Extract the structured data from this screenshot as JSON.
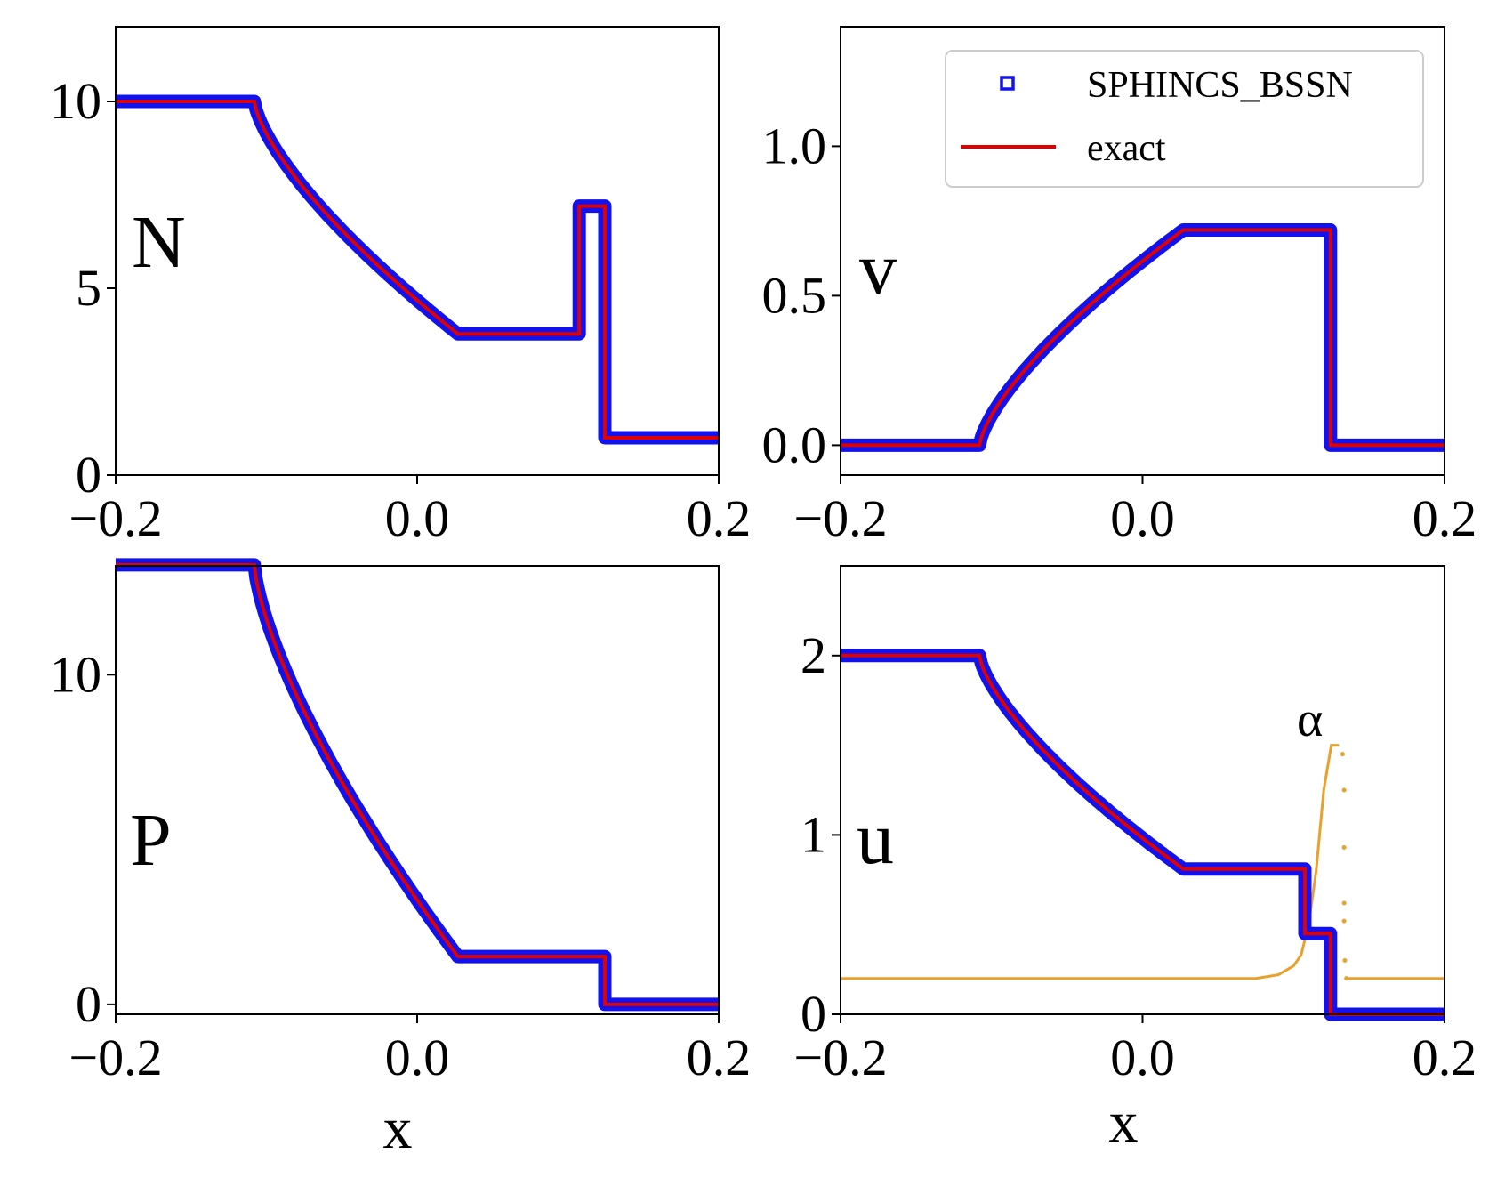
{
  "legend": {
    "sim_label": "SPHINCS_BSSN",
    "exact_label": "exact"
  },
  "colors": {
    "sim": "#1212ee",
    "exact": "#e00000",
    "alpha": "#e8a22c",
    "axis": "#000000"
  },
  "chart_data": [
    {
      "id": "N",
      "type": "line",
      "panel_label": "N",
      "xlabel": "",
      "xlim": [
        -0.2,
        0.2
      ],
      "ylim": [
        0,
        12
      ],
      "xticks": [
        -0.2,
        0.0,
        0.2
      ],
      "xtick_labels": [
        "−0.2",
        "0.0",
        "0.2"
      ],
      "yticks": [
        0,
        5,
        10
      ],
      "ytick_labels": [
        "0",
        "5",
        "10"
      ],
      "rarefaction": {
        "x_head": -0.108,
        "x_tail": 0.027,
        "y_left": 10.0,
        "y_right": 3.78,
        "exponent": 0.7
      },
      "exact_x": [
        -0.2,
        -0.108,
        0.027,
        0.1075,
        0.1075,
        0.1245,
        0.1245,
        0.2
      ],
      "exact_y": [
        10.0,
        10.0,
        3.78,
        3.78,
        7.2,
        7.2,
        1.0,
        1.0
      ]
    },
    {
      "id": "v",
      "type": "line",
      "panel_label": "v",
      "xlabel": "",
      "xlim": [
        -0.2,
        0.2
      ],
      "ylim": [
        -0.1,
        1.4
      ],
      "xticks": [
        -0.2,
        0.0,
        0.2
      ],
      "xtick_labels": [
        "−0.2",
        "0.0",
        "0.2"
      ],
      "yticks": [
        0.0,
        0.5,
        1.0
      ],
      "ytick_labels": [
        "0.0",
        "0.5",
        "1.0"
      ],
      "rarefaction": {
        "x_head": -0.108,
        "x_tail": 0.027,
        "y_left": 0.0,
        "y_right": 0.72,
        "exponent": 0.7
      },
      "exact_x": [
        -0.2,
        -0.108,
        0.027,
        0.1245,
        0.1245,
        0.2
      ],
      "exact_y": [
        0.0,
        0.0,
        0.72,
        0.72,
        0.0,
        0.0
      ]
    },
    {
      "id": "P",
      "type": "line",
      "panel_label": "P",
      "xlabel": "x",
      "xlim": [
        -0.2,
        0.2
      ],
      "ylim": [
        -0.3,
        13.3
      ],
      "xticks": [
        -0.2,
        0.0,
        0.2
      ],
      "xtick_labels": [
        "−0.2",
        "0.0",
        "0.2"
      ],
      "yticks": [
        0,
        10
      ],
      "ytick_labels": [
        "0",
        "10"
      ],
      "rarefaction": {
        "x_head": -0.108,
        "x_tail": 0.027,
        "y_left": 13.33,
        "y_right": 1.45,
        "exponent": 0.7
      },
      "exact_x": [
        -0.2,
        -0.108,
        0.027,
        0.1245,
        0.1245,
        0.2
      ],
      "exact_y": [
        13.33,
        13.33,
        1.45,
        1.45,
        0.0,
        0.0
      ]
    },
    {
      "id": "u",
      "type": "line",
      "panel_label": "u",
      "annotation": "α",
      "xlabel": "x",
      "xlim": [
        -0.2,
        0.2
      ],
      "ylim": [
        0,
        2.5
      ],
      "xticks": [
        -0.2,
        0.0,
        0.2
      ],
      "xtick_labels": [
        "−0.2",
        "0.0",
        "0.2"
      ],
      "yticks": [
        0,
        1,
        2
      ],
      "ytick_labels": [
        "0",
        "1",
        "2"
      ],
      "rarefaction": {
        "x_head": -0.108,
        "x_tail": 0.027,
        "y_left": 2.0,
        "y_right": 0.81,
        "exponent": 0.7
      },
      "exact_x": [
        -0.2,
        -0.108,
        0.027,
        0.1075,
        0.1075,
        0.1245,
        0.1245,
        0.2
      ],
      "exact_y": [
        2.0,
        2.0,
        0.81,
        0.81,
        0.45,
        0.45,
        0.0,
        0.0
      ],
      "alpha_x": [
        -0.2,
        0.075,
        0.09,
        0.1,
        0.105,
        0.11,
        0.115,
        0.12,
        0.125,
        0.13
      ],
      "alpha_y": [
        0.2,
        0.2,
        0.22,
        0.27,
        0.33,
        0.5,
        0.8,
        1.25,
        1.5,
        1.5
      ],
      "alpha_scatter_x": [
        0.1325,
        0.1335,
        0.1335,
        0.1335,
        0.1335,
        0.134,
        0.135
      ],
      "alpha_scatter_y": [
        1.45,
        1.25,
        0.93,
        0.62,
        0.52,
        0.3,
        0.2
      ],
      "alpha_flat_x": [
        0.135,
        0.2
      ],
      "alpha_flat_y": [
        0.2,
        0.2
      ]
    }
  ]
}
